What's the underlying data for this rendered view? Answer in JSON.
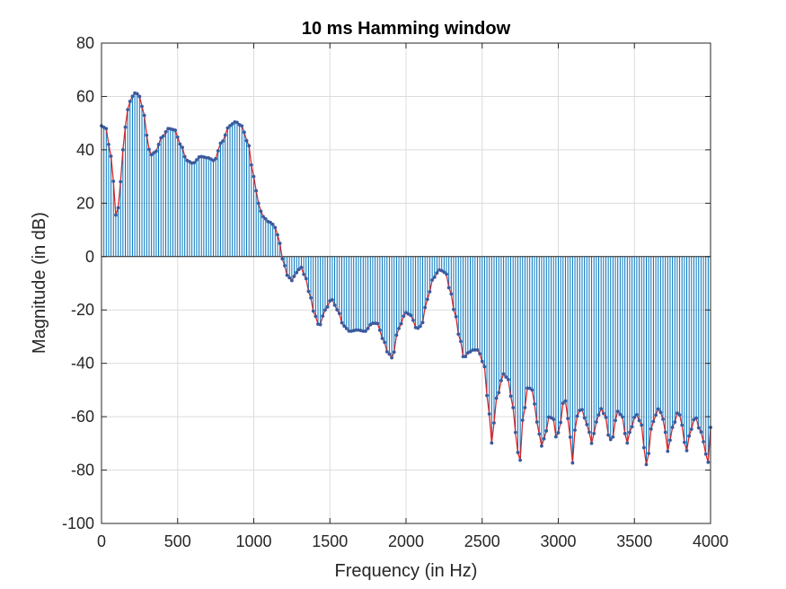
{
  "chart_data": {
    "type": "stem",
    "title": "10 ms Hamming window",
    "xlabel": "Frequency (in Hz)",
    "ylabel": "Magnitude (in dB)",
    "xlim": [
      0,
      4000
    ],
    "ylim": [
      -100,
      80
    ],
    "xticks": [
      0,
      500,
      1000,
      1500,
      2000,
      2500,
      3000,
      3500,
      4000
    ],
    "xtick_labels": [
      "0",
      "500",
      "1000",
      "1500",
      "2000",
      "2500",
      "3000",
      "3500",
      "4000"
    ],
    "yticks": [
      -100,
      -80,
      -60,
      -40,
      -20,
      0,
      20,
      40,
      60,
      80
    ],
    "ytick_labels": [
      "-100",
      "-80",
      "-60",
      "-40",
      "-20",
      "0",
      "20",
      "40",
      "60",
      "80"
    ],
    "grid": true,
    "colors": {
      "stem": "#0072BD",
      "marker": "#3A5A9E",
      "envelope": "#D62728"
    },
    "x_step": 15.625,
    "series": [
      {
        "style": "stem-with-envelope",
        "anchors": [
          [
            0,
            49
          ],
          [
            30,
            48
          ],
          [
            60,
            38
          ],
          [
            80,
            28
          ],
          [
            100,
            12
          ],
          [
            120,
            26
          ],
          [
            140,
            40
          ],
          [
            170,
            55
          ],
          [
            200,
            60
          ],
          [
            225,
            61.5
          ],
          [
            250,
            60
          ],
          [
            280,
            53
          ],
          [
            300,
            45
          ],
          [
            320,
            38
          ],
          [
            350,
            39
          ],
          [
            400,
            45
          ],
          [
            440,
            48
          ],
          [
            480,
            47.5
          ],
          [
            520,
            42
          ],
          [
            560,
            36
          ],
          [
            600,
            35
          ],
          [
            650,
            37.5
          ],
          [
            700,
            37
          ],
          [
            740,
            36
          ],
          [
            790,
            43
          ],
          [
            840,
            49
          ],
          [
            880,
            50.5
          ],
          [
            920,
            49
          ],
          [
            960,
            43
          ],
          [
            1000,
            30
          ],
          [
            1030,
            20
          ],
          [
            1060,
            15
          ],
          [
            1100,
            13
          ],
          [
            1130,
            12
          ],
          [
            1160,
            8
          ],
          [
            1190,
            -1
          ],
          [
            1220,
            -7
          ],
          [
            1250,
            -9
          ],
          [
            1280,
            -6
          ],
          [
            1310,
            -4
          ],
          [
            1340,
            -8
          ],
          [
            1370,
            -15
          ],
          [
            1400,
            -22
          ],
          [
            1430,
            -26
          ],
          [
            1470,
            -20
          ],
          [
            1510,
            -16
          ],
          [
            1550,
            -20
          ],
          [
            1590,
            -26
          ],
          [
            1630,
            -28
          ],
          [
            1680,
            -27.5
          ],
          [
            1730,
            -28
          ],
          [
            1780,
            -25
          ],
          [
            1810,
            -25
          ],
          [
            1850,
            -31
          ],
          [
            1880,
            -36
          ],
          [
            1910,
            -38
          ],
          [
            1950,
            -27
          ],
          [
            2000,
            -21
          ],
          [
            2030,
            -22
          ],
          [
            2070,
            -27
          ],
          [
            2100,
            -26
          ],
          [
            2140,
            -16
          ],
          [
            2180,
            -8
          ],
          [
            2220,
            -5
          ],
          [
            2260,
            -6
          ],
          [
            2290,
            -13
          ],
          [
            2320,
            -21
          ],
          [
            2350,
            -30
          ],
          [
            2380,
            -38
          ],
          [
            2410,
            -36
          ],
          [
            2440,
            -35
          ],
          [
            2470,
            -35
          ],
          [
            2510,
            -40
          ],
          [
            2540,
            -55
          ],
          [
            2560,
            -70
          ],
          [
            2600,
            -52
          ],
          [
            2640,
            -44
          ],
          [
            2670,
            -46
          ],
          [
            2700,
            -56
          ],
          [
            2720,
            -66
          ],
          [
            2745,
            -78
          ],
          [
            2770,
            -60
          ],
          [
            2800,
            -49
          ],
          [
            2830,
            -50
          ],
          [
            2860,
            -62
          ],
          [
            2890,
            -71
          ],
          [
            2910,
            -68
          ],
          [
            2940,
            -60
          ],
          [
            2970,
            -61
          ],
          [
            2990,
            -69
          ],
          [
            3010,
            -63
          ],
          [
            3040,
            -53
          ],
          [
            3070,
            -62
          ],
          [
            3090,
            -78
          ],
          [
            3120,
            -60
          ],
          [
            3150,
            -57
          ],
          [
            3190,
            -63
          ],
          [
            3220,
            -70
          ],
          [
            3250,
            -62
          ],
          [
            3280,
            -57
          ],
          [
            3310,
            -60
          ],
          [
            3330,
            -67
          ],
          [
            3350,
            -69
          ],
          [
            3390,
            -58
          ],
          [
            3420,
            -60
          ],
          [
            3450,
            -70
          ],
          [
            3480,
            -64
          ],
          [
            3510,
            -59
          ],
          [
            3540,
            -62
          ],
          [
            3580,
            -78
          ],
          [
            3620,
            -62
          ],
          [
            3660,
            -57
          ],
          [
            3690,
            -61
          ],
          [
            3720,
            -73
          ],
          [
            3750,
            -64
          ],
          [
            3790,
            -58
          ],
          [
            3810,
            -63
          ],
          [
            3840,
            -73
          ],
          [
            3870,
            -65
          ],
          [
            3900,
            -60
          ],
          [
            3930,
            -65
          ],
          [
            3960,
            -70
          ],
          [
            3980,
            -80
          ],
          [
            3995,
            -65
          ],
          [
            4000,
            -64
          ]
        ]
      }
    ]
  }
}
